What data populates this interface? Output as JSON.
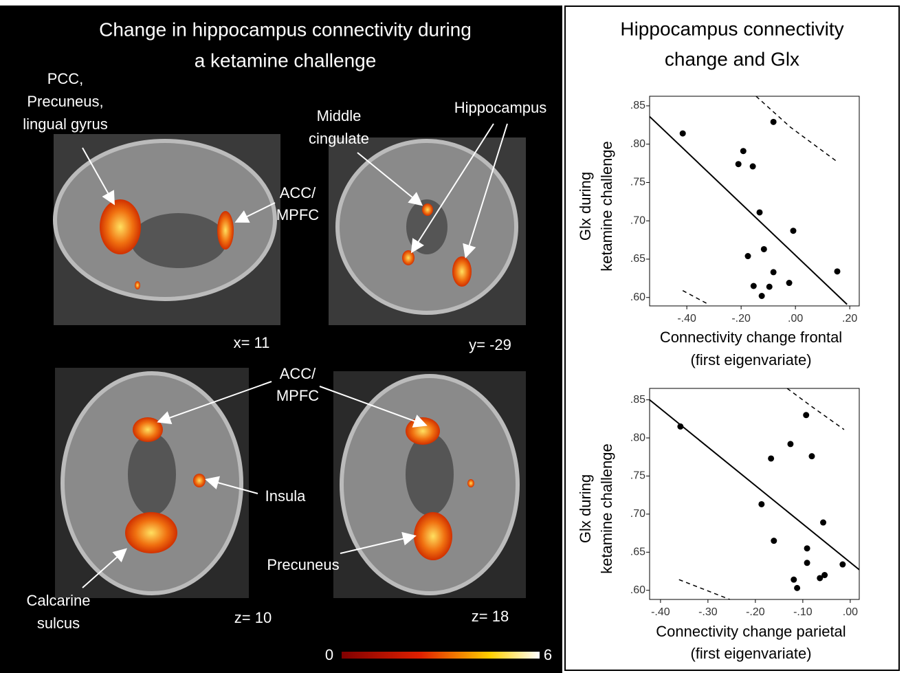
{
  "left_panel": {
    "title": [
      "Change in hippocampus connectivity  during",
      "a ketamine challenge"
    ],
    "labels": {
      "pcc": [
        "PCC,",
        "Precuneus,",
        "lingual gyrus"
      ],
      "middle_cingulate": [
        "Middle",
        "cingulate"
      ],
      "hippocampus": "Hippocampus",
      "acc_top": [
        "ACC/",
        "MPFC"
      ],
      "acc_bottom": [
        "ACC/",
        "MPFC"
      ],
      "insula": "Insula",
      "precuneus": "Precuneus",
      "calcarine": [
        "Calcarine",
        "sulcus"
      ]
    },
    "slices": [
      "x= 11",
      "y= -29",
      "z= 10",
      "z= 18"
    ],
    "colorbar": {
      "min": 0,
      "max": 6
    }
  },
  "right_panel": {
    "title": [
      "Hippocampus connectivity",
      "change and Glx"
    ]
  },
  "chart_data": [
    {
      "type": "scatter",
      "color": "#000000",
      "x": [
        -0.415,
        -0.081,
        -0.192,
        -0.21,
        -0.157,
        -0.132,
        -0.008,
        -0.116,
        -0.175,
        -0.081,
        0.154,
        -0.154,
        -0.096,
        -0.023,
        -0.124
      ],
      "values": [
        0.814,
        0.829,
        0.791,
        0.774,
        0.771,
        0.711,
        0.687,
        0.663,
        0.654,
        0.633,
        0.634,
        0.615,
        0.614,
        0.619,
        0.602
      ],
      "fit": {
        "x": [
          -0.537,
          0.19
        ],
        "values": [
          0.836,
          0.591
        ]
      },
      "ci_upper": {
        "x": [
          -0.145,
          -0.018,
          0.154
        ],
        "values": [
          0.8625,
          0.822,
          0.777
        ]
      },
      "ci_lower": {
        "x": [
          -0.415,
          -0.32
        ],
        "values": [
          0.609,
          0.591
        ]
      },
      "xlabel": [
        "Connectivity change frontal",
        "(first eigenvariate)"
      ],
      "ylabel": [
        "Glx during",
        "ketamine challenge"
      ],
      "xlim": [
        -0.537,
        0.235
      ],
      "ylim": [
        0.589,
        0.8625
      ],
      "xticks": [
        {
          "value": -0.4,
          "label": "-.40"
        },
        {
          "value": -0.2,
          "label": "-.20"
        },
        {
          "value": 0,
          "label": ".00"
        },
        {
          "value": 0.2,
          "label": ".20"
        }
      ],
      "yticks": [
        {
          "value": 0.6,
          "label": ".60"
        },
        {
          "value": 0.65,
          "label": ".65"
        },
        {
          "value": 0.7,
          "label": ".70"
        },
        {
          "value": 0.75,
          "label": ".75"
        },
        {
          "value": 0.8,
          "label": ".80"
        },
        {
          "value": 0.85,
          "label": ".85"
        }
      ]
    },
    {
      "type": "scatter",
      "color": "#000000",
      "x": [
        -0.358,
        -0.093,
        -0.126,
        -0.167,
        -0.081,
        -0.187,
        -0.057,
        -0.161,
        -0.091,
        -0.091,
        -0.016,
        -0.119,
        -0.112,
        -0.064,
        -0.054
      ],
      "values": [
        0.815,
        0.83,
        0.792,
        0.773,
        0.776,
        0.713,
        0.689,
        0.665,
        0.655,
        0.636,
        0.634,
        0.614,
        0.603,
        0.616,
        0.62
      ],
      "fit": {
        "x": [
          -0.423,
          0.019
        ],
        "values": [
          0.85,
          0.627
        ]
      },
      "ci_upper": {
        "x": [
          -0.133,
          -0.083,
          -0.013
        ],
        "values": [
          0.865,
          0.842,
          0.811
        ]
      },
      "ci_lower": {
        "x": [
          -0.361,
          -0.254
        ],
        "values": [
          0.614,
          0.588
        ]
      },
      "xlabel": [
        "Connectivity change parietal",
        "(first eigenvariate)"
      ],
      "ylabel": [
        "Glx during",
        "ketamine challenge"
      ],
      "xlim": [
        -0.423,
        0.019
      ],
      "ylim": [
        0.588,
        0.865
      ],
      "xticks": [
        {
          "value": -0.4,
          "label": "-.40"
        },
        {
          "value": -0.3,
          "label": "-.30"
        },
        {
          "value": -0.2,
          "label": "-.20"
        },
        {
          "value": -0.1,
          "label": "-.10"
        },
        {
          "value": 0,
          "label": ".00"
        }
      ],
      "yticks": [
        {
          "value": 0.6,
          "label": ".60"
        },
        {
          "value": 0.65,
          "label": ".65"
        },
        {
          "value": 0.7,
          "label": ".70"
        },
        {
          "value": 0.75,
          "label": ".75"
        },
        {
          "value": 0.8,
          "label": ".80"
        },
        {
          "value": 0.85,
          "label": ".85"
        }
      ]
    }
  ]
}
